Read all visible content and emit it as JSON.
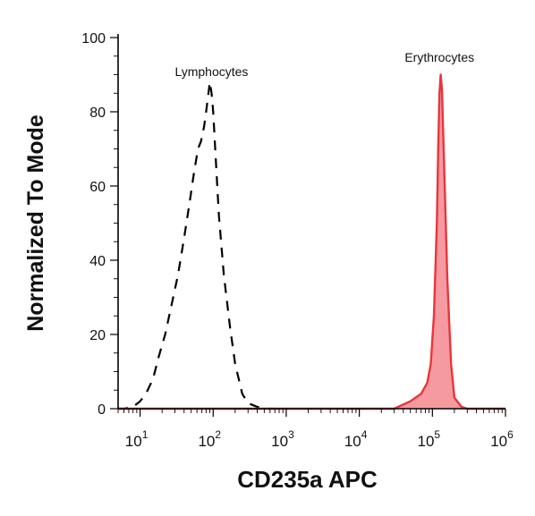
{
  "chart_data": {
    "type": "area",
    "xlabel": "CD235a APC",
    "ylabel": "Normalized To Mode",
    "x_scale": "log",
    "xlim": [
      5,
      1000000
    ],
    "ylim": [
      0,
      100
    ],
    "y_ticks": [
      0,
      20,
      40,
      60,
      80,
      100
    ],
    "x_ticks": [
      {
        "value": 10,
        "base": "10",
        "exp": "1"
      },
      {
        "value": 100,
        "base": "10",
        "exp": "2"
      },
      {
        "value": 1000,
        "base": "10",
        "exp": "3"
      },
      {
        "value": 10000,
        "base": "10",
        "exp": "4"
      },
      {
        "value": 100000,
        "base": "10",
        "exp": "5"
      },
      {
        "value": 1000000,
        "base": "10",
        "exp": "6"
      }
    ],
    "grid": false,
    "series": [
      {
        "name": "Lymphocytes",
        "style": "dashed",
        "color": "#000000",
        "fill": "none",
        "x": [
          5,
          6,
          8,
          10,
          12,
          15,
          18,
          22,
          27,
          33,
          40,
          48,
          55,
          62,
          68,
          75,
          80,
          85,
          90,
          95,
          100,
          110,
          120,
          140,
          170,
          200,
          250,
          300,
          400,
          500,
          700
        ],
        "y": [
          0,
          0,
          0.5,
          2,
          4,
          8,
          14,
          20,
          28,
          36,
          46,
          56,
          64,
          70,
          72,
          76,
          80,
          84,
          88,
          85,
          80,
          65,
          52,
          36,
          22,
          12,
          4,
          1.5,
          0.5,
          0,
          0
        ]
      },
      {
        "name": "Erythrocytes",
        "style": "solid",
        "color": "#e8363c",
        "fill": "#f59aa0",
        "x": [
          5,
          1000,
          10000,
          30000,
          50000,
          70000,
          85000,
          95000,
          105000,
          115000,
          120000,
          125000,
          130000,
          135000,
          145000,
          160000,
          180000,
          200000,
          250000,
          300000,
          1000000
        ],
        "y": [
          0,
          0,
          0,
          0,
          2,
          4,
          7,
          12,
          25,
          50,
          70,
          85,
          90,
          86,
          65,
          35,
          12,
          3,
          0.5,
          0,
          0
        ]
      }
    ],
    "annotations": [
      "Lymphocytes",
      "Erythrocytes"
    ]
  }
}
